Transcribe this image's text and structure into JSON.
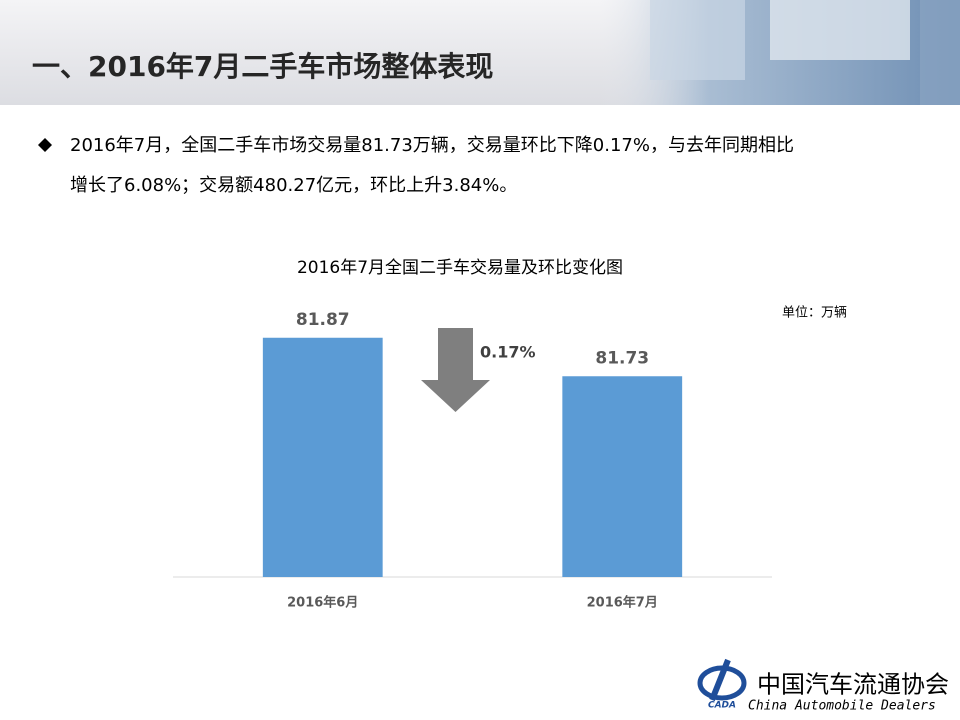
{
  "header": {
    "title": "一、2016年7月二手车市场整体表现"
  },
  "bullet": {
    "lines": [
      "2016年7月，全国二手车市场交易量81.73万辆，交易量环比下降0.17%，与去年同期相比",
      "增长了6.08%；交易额480.27亿元，环比上升3.84%。"
    ]
  },
  "chart_data": {
    "type": "bar",
    "title": "2016年7月全国二手车交易量及环比变化图",
    "unit_label": "单位：万辆",
    "categories": [
      "2016年6月",
      "2016年7月"
    ],
    "values": [
      81.87,
      81.73
    ],
    "color": "#5b9bd5",
    "ylim": [
      81,
      82
    ],
    "grid": false,
    "annotation": "0.17%",
    "annotation_color": "#7f7f7f"
  },
  "footer": {
    "org_name": "中国汽车流通协会",
    "org_name_en": "China  Automobile Dealers",
    "logo_text": "CADA"
  }
}
